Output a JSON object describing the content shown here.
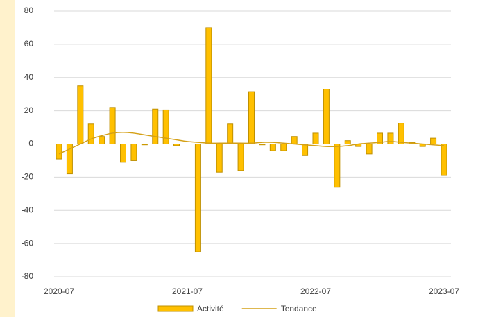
{
  "chart_data": {
    "type": "bar-line",
    "categories": [
      "2020-07",
      null,
      null,
      null,
      null,
      null,
      null,
      null,
      null,
      null,
      null,
      null,
      "2021-07",
      null,
      null,
      null,
      null,
      null,
      null,
      null,
      null,
      null,
      null,
      null,
      "2022-07",
      null,
      null,
      null,
      null,
      null,
      null,
      null,
      null,
      null,
      null,
      null,
      "2023-07"
    ],
    "series": [
      {
        "name": "Activité",
        "type": "bar",
        "color": "#ffc000",
        "edge_color": "#bf9000",
        "values": [
          -9,
          -18,
          35,
          12,
          4.5,
          22,
          -11,
          -10,
          -0.5,
          21,
          20.5,
          -1,
          0,
          -65,
          70,
          -17,
          12,
          -16,
          31.5,
          -0.5,
          -4,
          -4,
          4.5,
          -7,
          6.5,
          33,
          -26,
          2,
          -1.5,
          -6,
          6.5,
          6.5,
          12.5,
          1,
          -1.5,
          3.5,
          -19
        ]
      },
      {
        "name": "Tendance",
        "type": "line",
        "color": "#d4a017",
        "values": [
          -6,
          -3,
          0,
          3,
          5,
          6.5,
          7,
          6.5,
          5.5,
          4.5,
          3.5,
          2.5,
          1.5,
          1,
          0.5,
          0.5,
          0.5,
          0.5,
          0.5,
          1,
          1,
          0.5,
          0,
          -0.5,
          -1,
          -1.5,
          -1.5,
          -1,
          0,
          0.5,
          1,
          1.5,
          1,
          0.5,
          0,
          -0.5,
          -1
        ]
      }
    ],
    "ylim": [
      -80,
      80
    ],
    "yticks": [
      -80,
      -60,
      -40,
      -20,
      0,
      20,
      40,
      60,
      80
    ],
    "grid": true,
    "legend": "bottom"
  }
}
